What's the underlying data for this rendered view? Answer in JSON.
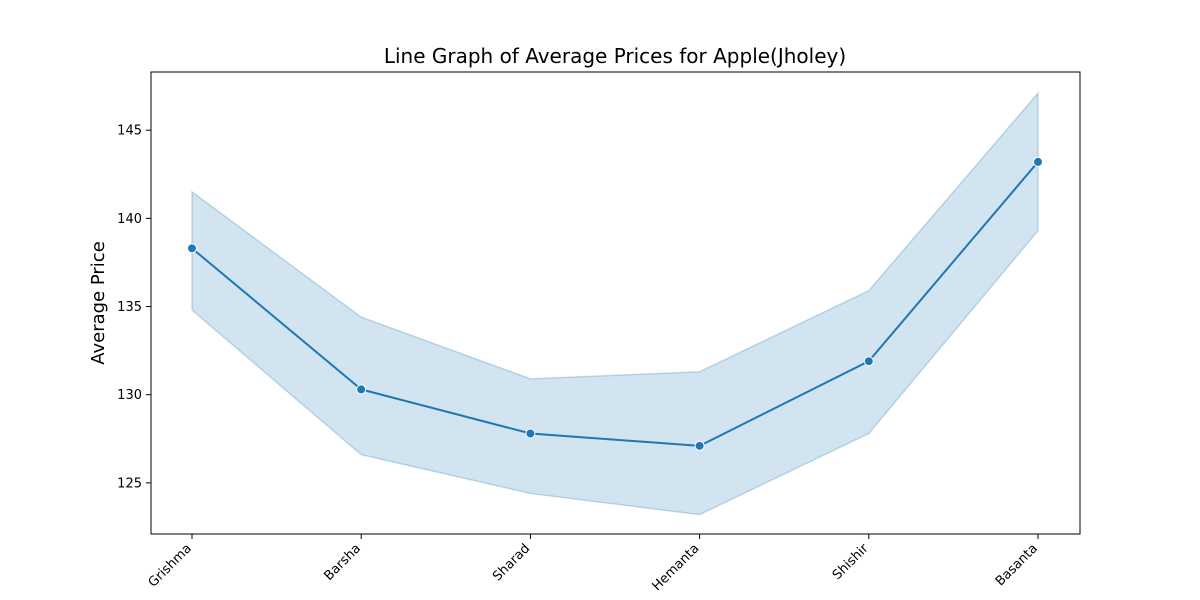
{
  "chart_data": {
    "type": "line",
    "title": "Line Graph of Average Prices for Apple(Jholey)",
    "xlabel": "",
    "ylabel": "Average Price",
    "categories": [
      "Grishma",
      "Barsha",
      "Sharad",
      "Hemanta",
      "Shishir",
      "Basanta"
    ],
    "series": [
      {
        "values": [
          138.3,
          130.3,
          127.8,
          127.1,
          131.9,
          143.2
        ],
        "ci_upper": [
          141.5,
          134.4,
          130.9,
          131.3,
          135.9,
          147.1
        ],
        "ci_lower": [
          134.8,
          126.6,
          124.4,
          123.2,
          127.8,
          139.3
        ]
      }
    ],
    "yticks": [
      125,
      130,
      135,
      140,
      145
    ],
    "ylim": [
      122.1,
      148.3
    ],
    "grid": false,
    "colors": {
      "line": "#1f77b4",
      "band": "#1f77b4"
    }
  }
}
